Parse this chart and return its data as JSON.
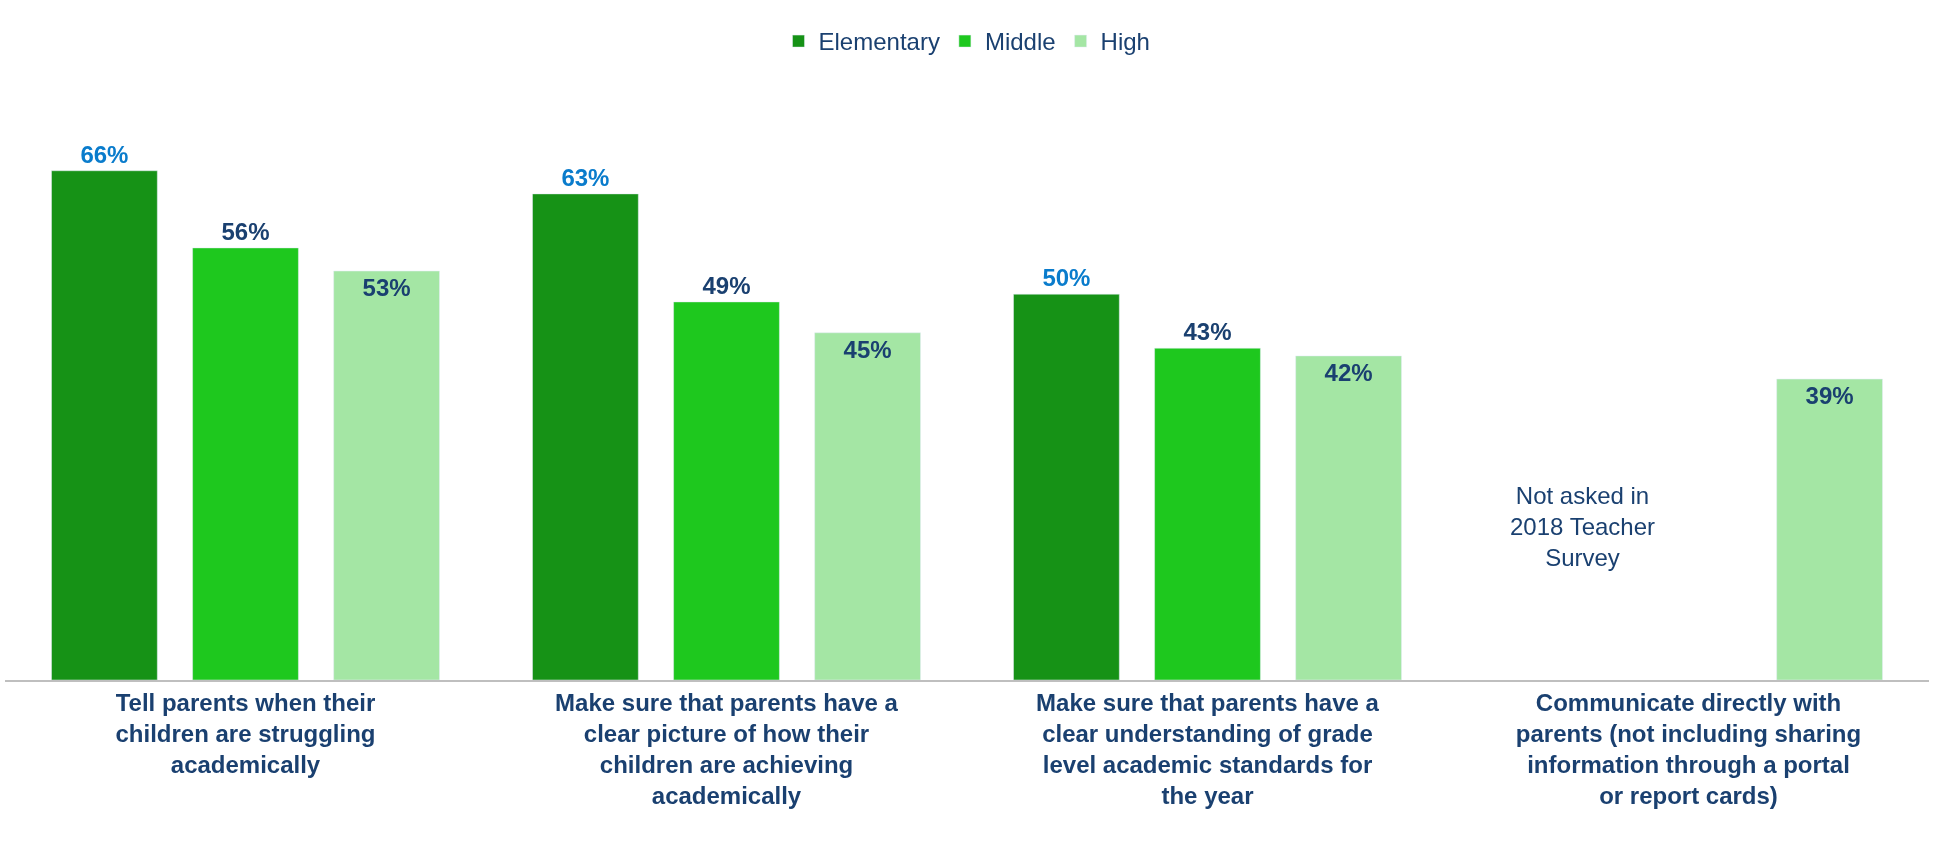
{
  "chart_data": {
    "type": "bar",
    "categories": [
      "Tell parents when their children are struggling academically",
      "Make sure that parents have a clear picture of how their children are achieving academically",
      "Make sure that parents have a clear understanding of grade level academic standards for the year",
      "Communicate directly with parents (not including sharing information through a portal or report cards)"
    ],
    "series": [
      {
        "name": "Elementary",
        "color": "#169216",
        "values": [
          66,
          63,
          50,
          null
        ],
        "value_labels": [
          "66%",
          "63%",
          "50%",
          null
        ]
      },
      {
        "name": "Middle",
        "color": "#1ec81e",
        "values": [
          56,
          49,
          43,
          null
        ],
        "value_labels": [
          "56%",
          "49%",
          "43%",
          null
        ]
      },
      {
        "name": "High",
        "color": "#a4e6a4",
        "values": [
          53,
          45,
          42,
          39
        ],
        "value_labels": [
          "53%",
          "45%",
          "42%",
          "39%"
        ]
      }
    ],
    "legend": "top",
    "annotations": [
      "Not asked in 2018 Teacher Survey"
    ]
  }
}
